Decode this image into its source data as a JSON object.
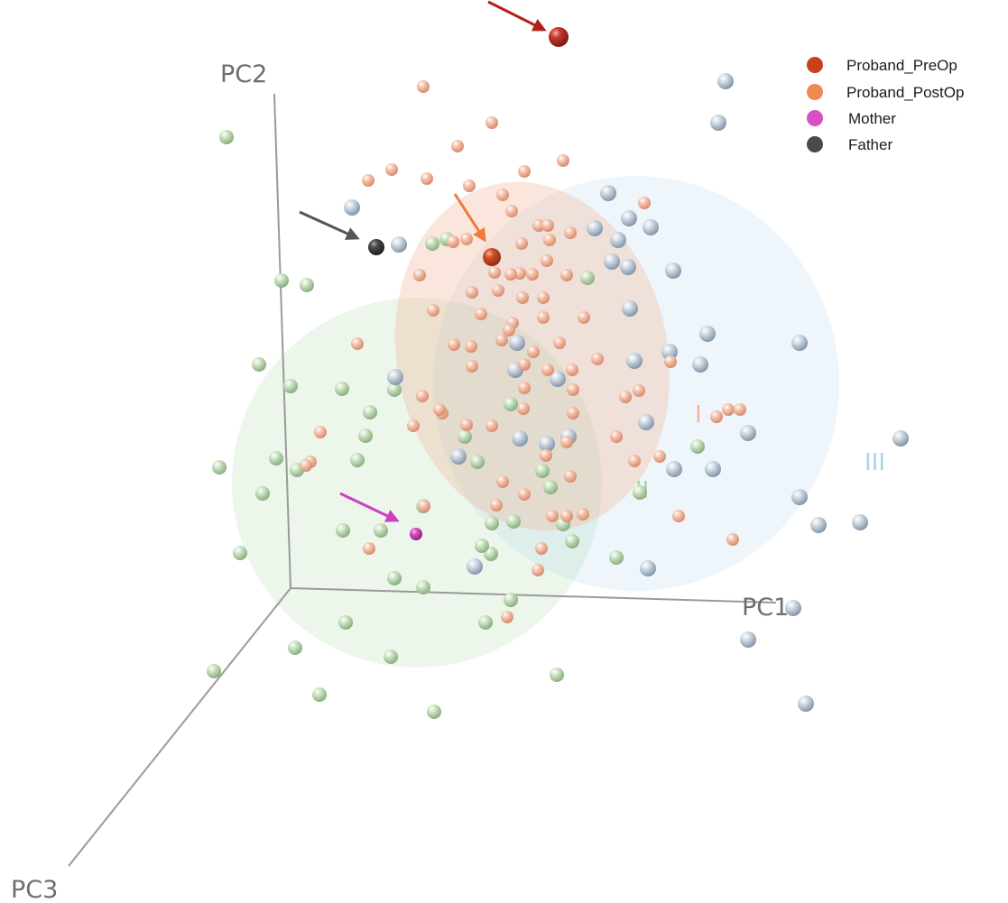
{
  "chart_data": {
    "type": "scatter",
    "dimensions": 3,
    "axes": {
      "x": "PC1",
      "y": "PC2",
      "z": "PC3"
    },
    "legend": {
      "placement": "top-right",
      "entries": [
        {
          "name": "Proband_PreOp",
          "color": "#c8401c"
        },
        {
          "name": "Proband_PostOp",
          "color": "#ef8a52"
        },
        {
          "name": "Mother",
          "color": "#d64fc4"
        },
        {
          "name": "Father",
          "color": "#4a4a4a"
        }
      ]
    },
    "clusters": [
      {
        "label": "I",
        "color": "#f2b79a"
      },
      {
        "label": "II",
        "color": "#a8d6a2"
      },
      {
        "label": "III",
        "color": "#a9d3ea"
      }
    ],
    "group_colors": {
      "I": "#e8a388",
      "II": "#a7c79c",
      "III": "#a9b9c9"
    },
    "highlighted": [
      {
        "series": "Proband_PreOp",
        "color": "#b32a22",
        "arrow_color": "#b3201c"
      },
      {
        "series": "Proband_PostOp",
        "color": "#c8401c",
        "arrow_color": "#ee7b3e"
      },
      {
        "series": "Mother",
        "color": "#d64fc4",
        "arrow_color": "#cc3fc0"
      },
      {
        "series": "Father",
        "color": "#4a4a4a",
        "arrow_color": "#555555"
      }
    ],
    "points": {
      "I": [
        [
          469,
          96
        ],
        [
          545,
          136
        ],
        [
          507,
          162
        ],
        [
          581,
          190
        ],
        [
          624,
          178
        ],
        [
          434,
          188
        ],
        [
          473,
          198
        ],
        [
          408,
          200
        ],
        [
          520,
          206
        ],
        [
          557,
          216
        ],
        [
          714,
          225
        ],
        [
          567,
          234
        ],
        [
          597,
          250
        ],
        [
          607,
          250
        ],
        [
          632,
          258
        ],
        [
          609,
          266
        ],
        [
          578,
          270
        ],
        [
          517,
          265
        ],
        [
          502,
          268
        ],
        [
          606,
          289
        ],
        [
          576,
          303
        ],
        [
          566,
          304
        ],
        [
          548,
          302
        ],
        [
          590,
          304
        ],
        [
          628,
          305
        ],
        [
          465,
          305
        ],
        [
          523,
          324
        ],
        [
          552,
          322
        ],
        [
          579,
          330
        ],
        [
          602,
          330
        ],
        [
          533,
          348
        ],
        [
          568,
          358
        ],
        [
          602,
          352
        ],
        [
          647,
          352
        ],
        [
          480,
          344
        ],
        [
          564,
          366
        ],
        [
          396,
          381
        ],
        [
          503,
          382
        ],
        [
          522,
          384
        ],
        [
          556,
          377
        ],
        [
          591,
          390
        ],
        [
          620,
          380
        ],
        [
          662,
          398
        ],
        [
          743,
          401
        ],
        [
          523,
          406
        ],
        [
          581,
          404
        ],
        [
          607,
          410
        ],
        [
          634,
          410
        ],
        [
          468,
          439
        ],
        [
          581,
          430
        ],
        [
          635,
          432
        ],
        [
          490,
          458
        ],
        [
          517,
          471
        ],
        [
          545,
          472
        ],
        [
          580,
          453
        ],
        [
          635,
          458
        ],
        [
          683,
          484
        ],
        [
          693,
          440
        ],
        [
          708,
          433
        ],
        [
          487,
          454
        ],
        [
          458,
          472
        ],
        [
          628,
          490
        ],
        [
          605,
          505
        ],
        [
          703,
          511
        ],
        [
          731,
          506
        ],
        [
          807,
          454
        ],
        [
          794,
          462
        ],
        [
          820,
          454
        ],
        [
          344,
          512
        ],
        [
          339,
          516
        ],
        [
          355,
          479
        ],
        [
          557,
          534
        ],
        [
          581,
          548
        ],
        [
          632,
          528
        ],
        [
          470,
          561
        ],
        [
          550,
          560
        ],
        [
          612,
          572
        ],
        [
          628,
          572
        ],
        [
          646,
          570
        ],
        [
          752,
          572
        ],
        [
          409,
          608
        ],
        [
          600,
          608
        ],
        [
          596,
          632
        ],
        [
          812,
          598
        ],
        [
          562,
          684
        ]
      ],
      "II": [
        [
          251,
          152
        ],
        [
          312,
          311
        ],
        [
          340,
          316
        ],
        [
          479,
          270
        ],
        [
          495,
          265
        ],
        [
          287,
          404
        ],
        [
          379,
          431
        ],
        [
          322,
          428
        ],
        [
          437,
          432
        ],
        [
          410,
          457
        ],
        [
          306,
          508
        ],
        [
          243,
          518
        ],
        [
          396,
          510
        ],
        [
          405,
          483
        ],
        [
          515,
          484
        ],
        [
          291,
          547
        ],
        [
          329,
          521
        ],
        [
          469,
          561
        ],
        [
          529,
          512
        ],
        [
          566,
          448
        ],
        [
          601,
          522
        ],
        [
          610,
          540
        ],
        [
          651,
          308
        ],
        [
          380,
          588
        ],
        [
          422,
          588
        ],
        [
          266,
          613
        ],
        [
          545,
          580
        ],
        [
          569,
          578
        ],
        [
          624,
          581
        ],
        [
          634,
          600
        ],
        [
          683,
          618
        ],
        [
          544,
          614
        ],
        [
          534,
          605
        ],
        [
          437,
          641
        ],
        [
          469,
          651
        ],
        [
          566,
          665
        ],
        [
          383,
          690
        ],
        [
          538,
          690
        ],
        [
          327,
          718
        ],
        [
          433,
          728
        ],
        [
          354,
          770
        ],
        [
          237,
          744
        ],
        [
          617,
          748
        ],
        [
          481,
          789
        ],
        [
          773,
          495
        ],
        [
          709,
          546
        ]
      ],
      "III": [
        [
          804,
          90
        ],
        [
          796,
          136
        ],
        [
          390,
          230
        ],
        [
          442,
          271
        ],
        [
          674,
          214
        ],
        [
          659,
          253
        ],
        [
          685,
          266
        ],
        [
          721,
          252
        ],
        [
          697,
          242
        ],
        [
          696,
          296
        ],
        [
          678,
          290
        ],
        [
          746,
          300
        ],
        [
          698,
          342
        ],
        [
          784,
          370
        ],
        [
          886,
          380
        ],
        [
          776,
          404
        ],
        [
          703,
          400
        ],
        [
          742,
          390
        ],
        [
          438,
          418
        ],
        [
          573,
          380
        ],
        [
          571,
          410
        ],
        [
          618,
          420
        ],
        [
          716,
          468
        ],
        [
          829,
          480
        ],
        [
          998,
          486
        ],
        [
          576,
          486
        ],
        [
          606,
          492
        ],
        [
          630,
          484
        ],
        [
          508,
          506
        ],
        [
          747,
          520
        ],
        [
          790,
          520
        ],
        [
          886,
          551
        ],
        [
          907,
          582
        ],
        [
          953,
          579
        ],
        [
          526,
          628
        ],
        [
          718,
          630
        ],
        [
          879,
          674
        ],
        [
          829,
          709
        ],
        [
          893,
          780
        ]
      ]
    }
  }
}
